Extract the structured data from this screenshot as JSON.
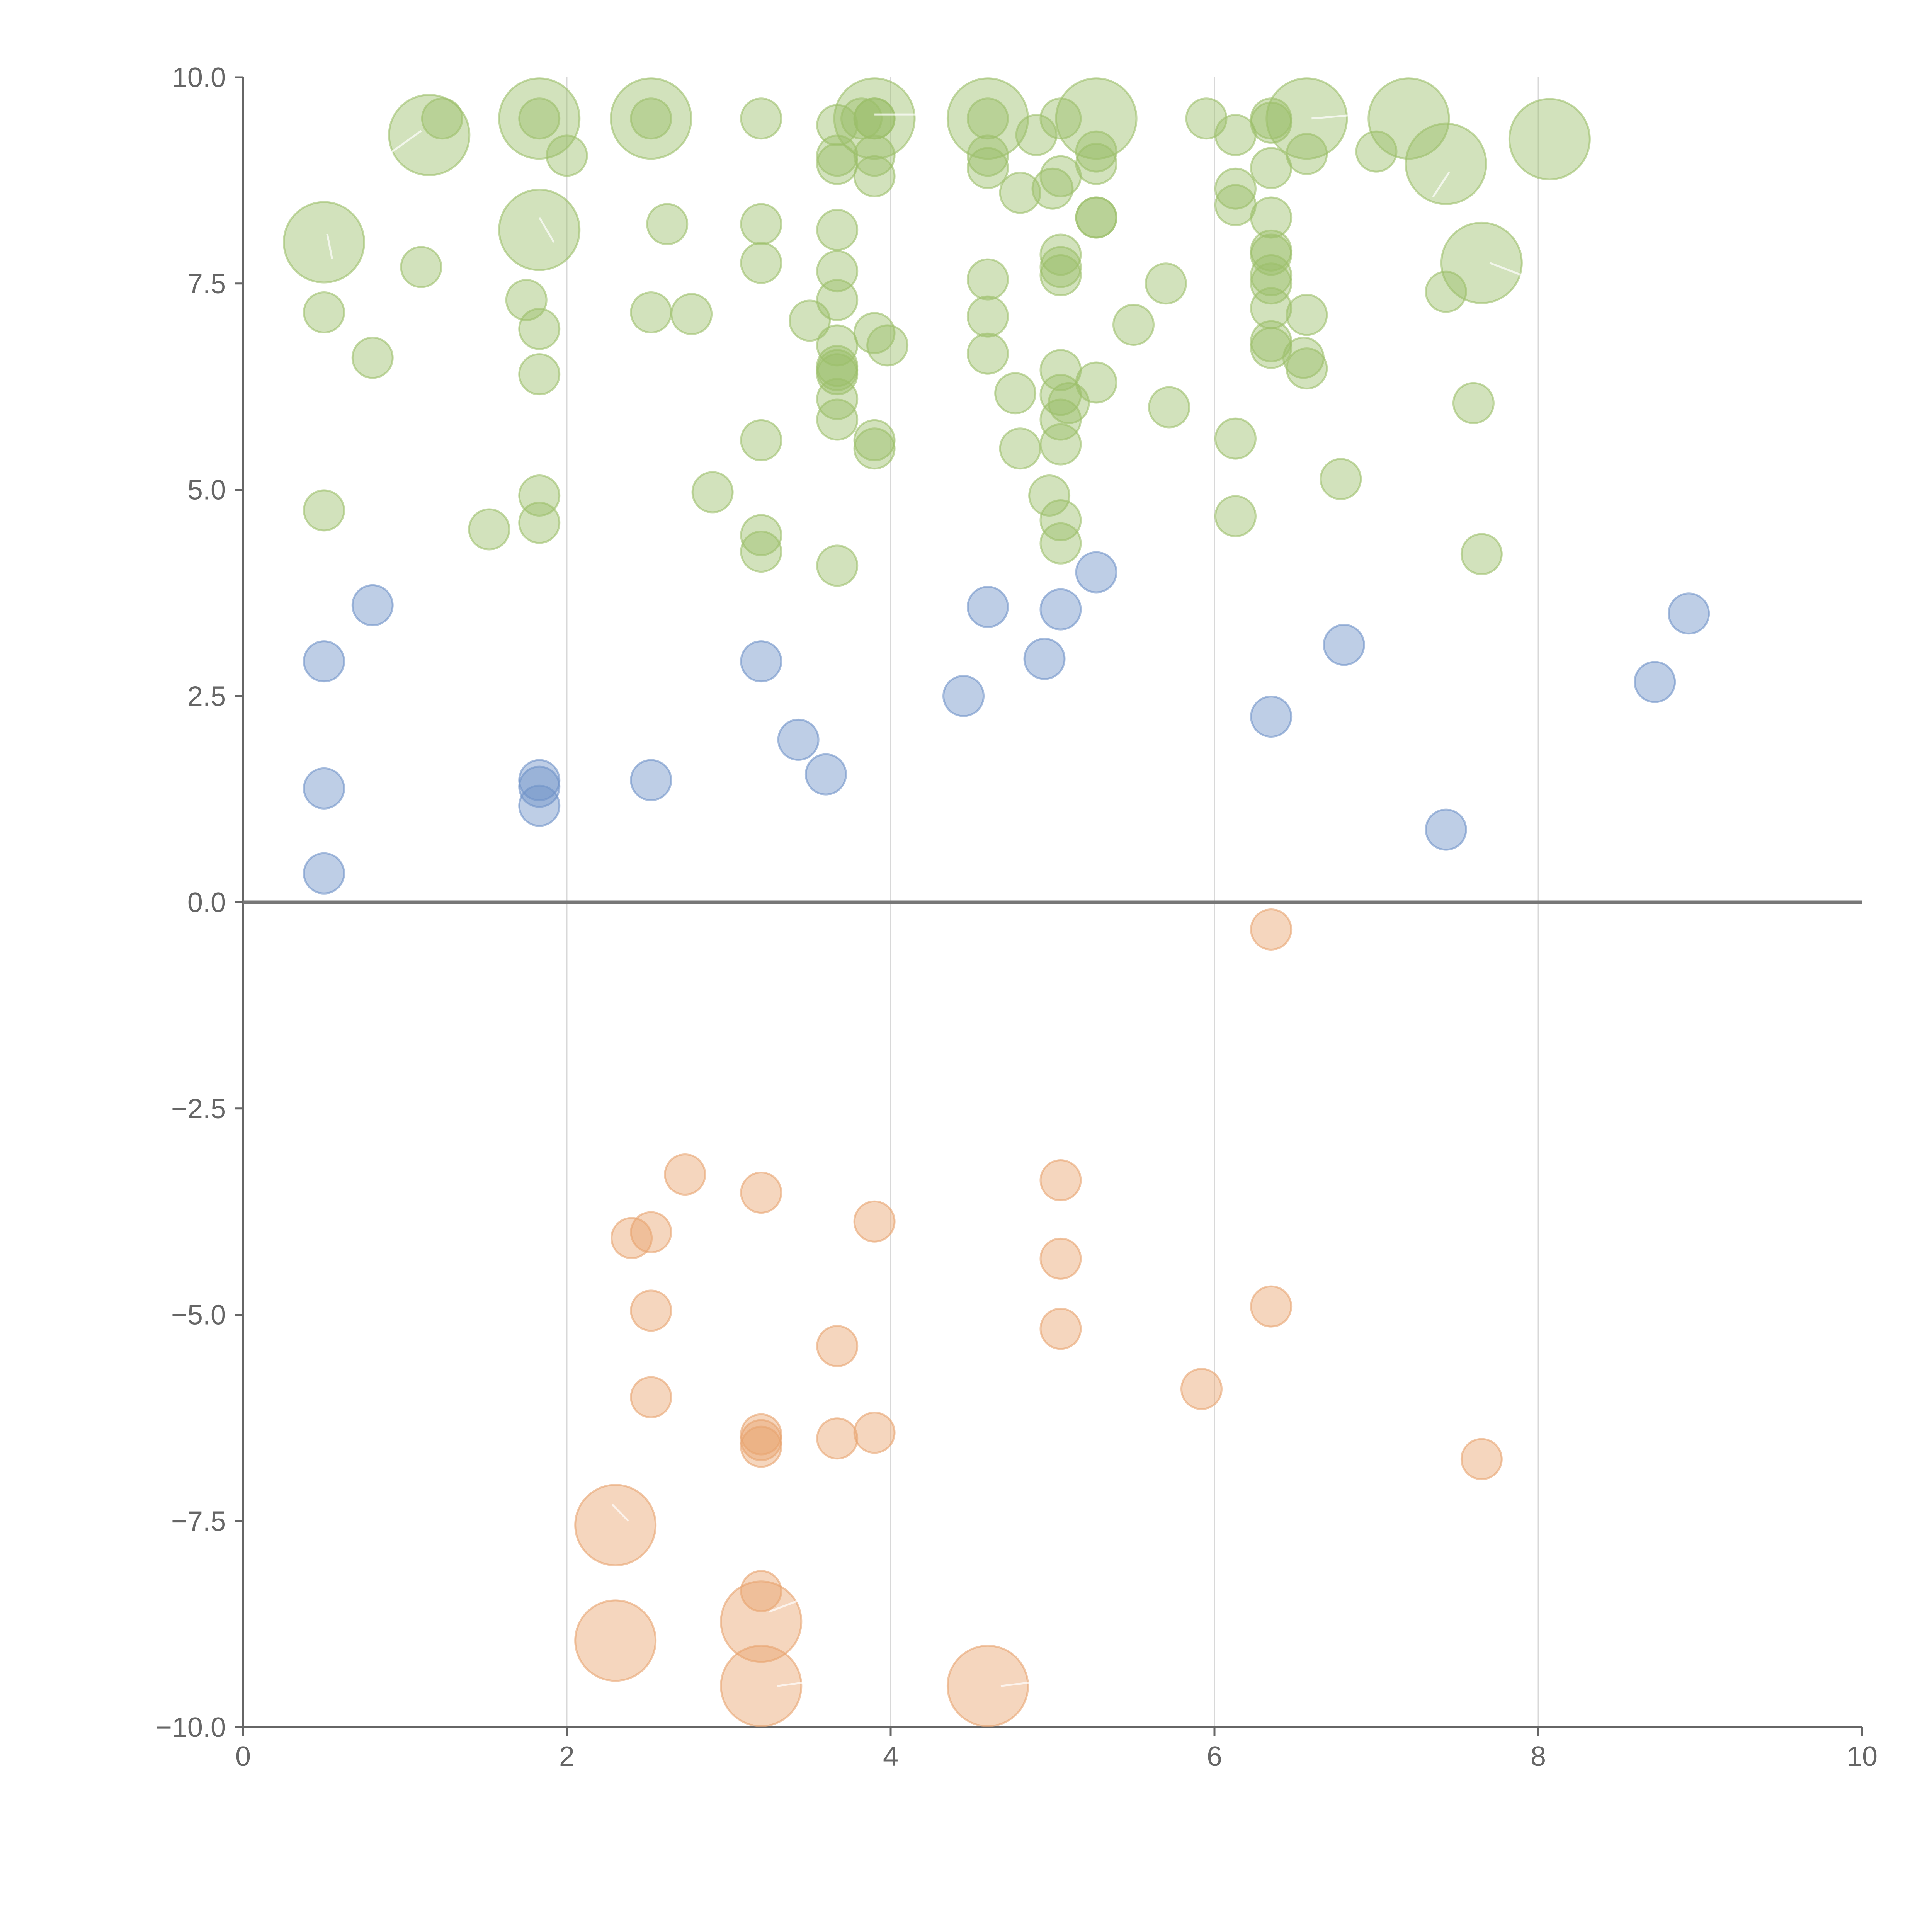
{
  "chart_data": {
    "type": "scatter",
    "subtype": "bubble",
    "title": "",
    "xlabel": "",
    "ylabel": "",
    "xlim": [
      0,
      10
    ],
    "ylim": [
      -10,
      10
    ],
    "x_ticks": [
      0,
      2,
      4,
      6,
      8,
      10
    ],
    "y_ticks": [
      10,
      7.5,
      5,
      2.5,
      0,
      -2.5,
      -5,
      -7.5,
      -10
    ],
    "x_tick_labels": [
      "0",
      "2",
      "4",
      "6",
      "8",
      "10"
    ],
    "y_tick_labels": [
      "10.0",
      "7.5",
      "5.0",
      "2.5",
      "0.0",
      "−2.5",
      "−5.0",
      "−7.5",
      "−10.0"
    ],
    "grid": "vertical only",
    "colors": {
      "green": "#9cbf6b",
      "blue": "#6f93c8",
      "orange": "#e8a36f"
    },
    "size_note": "s = relative bubble size (1 = smallest)",
    "series": [
      {
        "name": "green",
        "color_key": "green",
        "points": [
          {
            "x": 1.15,
            "y": 9.3,
            "s": 2.0
          },
          {
            "x": 1.23,
            "y": 9.5,
            "s": 1.0
          },
          {
            "x": 1.83,
            "y": 9.5,
            "s": 1.0
          },
          {
            "x": 1.83,
            "y": 9.5,
            "s": 2.0
          },
          {
            "x": 2.0,
            "y": 9.05,
            "s": 1.0
          },
          {
            "x": 2.52,
            "y": 9.5,
            "s": 1.0
          },
          {
            "x": 2.52,
            "y": 9.5,
            "s": 2.0
          },
          {
            "x": 3.2,
            "y": 9.5,
            "s": 1.0
          },
          {
            "x": 3.67,
            "y": 9.42,
            "s": 1.0
          },
          {
            "x": 3.82,
            "y": 9.5,
            "s": 1.0
          },
          {
            "x": 3.9,
            "y": 9.5,
            "s": 1.0
          },
          {
            "x": 3.9,
            "y": 9.5,
            "s": 1.0
          },
          {
            "x": 3.9,
            "y": 9.5,
            "s": 2.0
          },
          {
            "x": 4.6,
            "y": 9.5,
            "s": 1.0
          },
          {
            "x": 4.6,
            "y": 9.5,
            "s": 2.0
          },
          {
            "x": 4.9,
            "y": 9.3,
            "s": 1.0
          },
          {
            "x": 5.05,
            "y": 9.5,
            "s": 1.0
          },
          {
            "x": 5.27,
            "y": 9.5,
            "s": 2.0
          },
          {
            "x": 5.95,
            "y": 9.5,
            "s": 1.0
          },
          {
            "x": 6.13,
            "y": 9.3,
            "s": 1.0
          },
          {
            "x": 6.35,
            "y": 9.5,
            "s": 1.0
          },
          {
            "x": 6.35,
            "y": 9.45,
            "s": 1.0
          },
          {
            "x": 6.57,
            "y": 9.5,
            "s": 2.0
          },
          {
            "x": 7.2,
            "y": 9.5,
            "s": 2.0
          },
          {
            "x": 3.67,
            "y": 9.05,
            "s": 1.0
          },
          {
            "x": 3.67,
            "y": 8.95,
            "s": 1.0
          },
          {
            "x": 3.9,
            "y": 9.05,
            "s": 1.0
          },
          {
            "x": 3.9,
            "y": 8.8,
            "s": 1.0
          },
          {
            "x": 4.6,
            "y": 9.05,
            "s": 1.0
          },
          {
            "x": 4.6,
            "y": 8.9,
            "s": 1.0
          },
          {
            "x": 4.8,
            "y": 8.6,
            "s": 1.0
          },
          {
            "x": 5.0,
            "y": 8.65,
            "s": 1.0
          },
          {
            "x": 5.05,
            "y": 8.8,
            "s": 1.0
          },
          {
            "x": 5.27,
            "y": 9.1,
            "s": 1.0
          },
          {
            "x": 5.27,
            "y": 8.95,
            "s": 1.0
          },
          {
            "x": 5.27,
            "y": 8.3,
            "s": 1.0
          },
          {
            "x": 5.27,
            "y": 8.3,
            "s": 1.0
          },
          {
            "x": 6.13,
            "y": 8.65,
            "s": 1.0
          },
          {
            "x": 6.13,
            "y": 8.45,
            "s": 1.0
          },
          {
            "x": 6.35,
            "y": 8.9,
            "s": 1.0
          },
          {
            "x": 6.57,
            "y": 9.07,
            "s": 1.0
          },
          {
            "x": 7.0,
            "y": 9.1,
            "s": 1.0
          },
          {
            "x": 7.43,
            "y": 8.95,
            "s": 2.0
          },
          {
            "x": 8.07,
            "y": 9.25,
            "s": 2.0
          },
          {
            "x": 0.5,
            "y": 8.0,
            "s": 2.0
          },
          {
            "x": 1.1,
            "y": 7.7,
            "s": 1.0
          },
          {
            "x": 1.83,
            "y": 8.15,
            "s": 2.0
          },
          {
            "x": 2.62,
            "y": 8.22,
            "s": 1.0
          },
          {
            "x": 3.2,
            "y": 8.22,
            "s": 1.0
          },
          {
            "x": 3.2,
            "y": 7.75,
            "s": 1.0
          },
          {
            "x": 3.67,
            "y": 8.15,
            "s": 1.0
          },
          {
            "x": 3.67,
            "y": 7.65,
            "s": 1.0
          },
          {
            "x": 4.6,
            "y": 7.55,
            "s": 1.0
          },
          {
            "x": 5.05,
            "y": 7.85,
            "s": 1.0
          },
          {
            "x": 5.05,
            "y": 7.7,
            "s": 1.0
          },
          {
            "x": 5.05,
            "y": 7.6,
            "s": 1.0
          },
          {
            "x": 5.7,
            "y": 7.5,
            "s": 1.0
          },
          {
            "x": 6.35,
            "y": 8.3,
            "s": 1.0
          },
          {
            "x": 6.35,
            "y": 7.9,
            "s": 1.0
          },
          {
            "x": 6.35,
            "y": 7.85,
            "s": 1.0
          },
          {
            "x": 6.35,
            "y": 7.6,
            "s": 1.0
          },
          {
            "x": 6.35,
            "y": 7.5,
            "s": 1.0
          },
          {
            "x": 7.65,
            "y": 7.75,
            "s": 2.0
          },
          {
            "x": 7.43,
            "y": 7.4,
            "s": 1.0
          },
          {
            "x": 0.5,
            "y": 7.15,
            "s": 1.0
          },
          {
            "x": 0.8,
            "y": 6.6,
            "s": 1.0
          },
          {
            "x": 1.75,
            "y": 7.3,
            "s": 1.0
          },
          {
            "x": 1.83,
            "y": 6.95,
            "s": 1.0
          },
          {
            "x": 1.83,
            "y": 6.4,
            "s": 1.0
          },
          {
            "x": 2.52,
            "y": 7.15,
            "s": 1.0
          },
          {
            "x": 2.77,
            "y": 7.13,
            "s": 1.0
          },
          {
            "x": 3.5,
            "y": 7.05,
            "s": 1.0
          },
          {
            "x": 3.67,
            "y": 7.3,
            "s": 1.0
          },
          {
            "x": 3.67,
            "y": 6.75,
            "s": 1.0
          },
          {
            "x": 3.67,
            "y": 6.5,
            "s": 1.0
          },
          {
            "x": 3.67,
            "y": 6.45,
            "s": 1.0
          },
          {
            "x": 3.67,
            "y": 6.4,
            "s": 1.0
          },
          {
            "x": 3.67,
            "y": 6.1,
            "s": 1.0
          },
          {
            "x": 3.67,
            "y": 5.85,
            "s": 1.0
          },
          {
            "x": 3.9,
            "y": 6.9,
            "s": 1.0
          },
          {
            "x": 3.98,
            "y": 6.75,
            "s": 1.0
          },
          {
            "x": 3.9,
            "y": 5.6,
            "s": 1.0
          },
          {
            "x": 3.9,
            "y": 5.5,
            "s": 1.0
          },
          {
            "x": 4.6,
            "y": 7.1,
            "s": 1.0
          },
          {
            "x": 4.6,
            "y": 6.65,
            "s": 1.0
          },
          {
            "x": 4.77,
            "y": 6.17,
            "s": 1.0
          },
          {
            "x": 5.05,
            "y": 6.45,
            "s": 1.0
          },
          {
            "x": 5.05,
            "y": 6.15,
            "s": 1.0
          },
          {
            "x": 5.1,
            "y": 6.05,
            "s": 1.0
          },
          {
            "x": 5.05,
            "y": 5.85,
            "s": 1.0
          },
          {
            "x": 5.05,
            "y": 5.55,
            "s": 1.0
          },
          {
            "x": 4.8,
            "y": 5.5,
            "s": 1.0
          },
          {
            "x": 5.27,
            "y": 6.3,
            "s": 1.0
          },
          {
            "x": 5.5,
            "y": 7.0,
            "s": 1.0
          },
          {
            "x": 5.72,
            "y": 6.0,
            "s": 1.0
          },
          {
            "x": 6.13,
            "y": 5.62,
            "s": 1.0
          },
          {
            "x": 6.35,
            "y": 7.2,
            "s": 1.0
          },
          {
            "x": 6.35,
            "y": 6.8,
            "s": 1.0
          },
          {
            "x": 6.35,
            "y": 6.72,
            "s": 1.0
          },
          {
            "x": 6.57,
            "y": 7.12,
            "s": 1.0
          },
          {
            "x": 6.55,
            "y": 6.6,
            "s": 1.0
          },
          {
            "x": 6.57,
            "y": 6.47,
            "s": 1.0
          },
          {
            "x": 7.6,
            "y": 6.05,
            "s": 1.0
          },
          {
            "x": 3.2,
            "y": 5.6,
            "s": 1.0
          },
          {
            "x": 0.5,
            "y": 4.75,
            "s": 1.0
          },
          {
            "x": 1.52,
            "y": 4.52,
            "s": 1.0
          },
          {
            "x": 1.83,
            "y": 4.93,
            "s": 1.0
          },
          {
            "x": 1.83,
            "y": 4.6,
            "s": 1.0
          },
          {
            "x": 2.9,
            "y": 4.97,
            "s": 1.0
          },
          {
            "x": 3.2,
            "y": 4.45,
            "s": 1.0
          },
          {
            "x": 3.2,
            "y": 4.25,
            "s": 1.0
          },
          {
            "x": 3.67,
            "y": 4.08,
            "s": 1.0
          },
          {
            "x": 4.98,
            "y": 4.93,
            "s": 1.0
          },
          {
            "x": 5.05,
            "y": 4.63,
            "s": 1.0
          },
          {
            "x": 5.05,
            "y": 4.35,
            "s": 1.0
          },
          {
            "x": 6.13,
            "y": 4.68,
            "s": 1.0
          },
          {
            "x": 6.78,
            "y": 5.13,
            "s": 1.0
          },
          {
            "x": 7.65,
            "y": 4.22,
            "s": 1.0
          }
        ]
      },
      {
        "name": "blue",
        "color_key": "blue",
        "points": [
          {
            "x": 0.8,
            "y": 3.6,
            "s": 1.0
          },
          {
            "x": 0.5,
            "y": 2.92,
            "s": 1.0
          },
          {
            "x": 0.5,
            "y": 1.38,
            "s": 1.0
          },
          {
            "x": 0.5,
            "y": 0.35,
            "s": 1.0
          },
          {
            "x": 1.83,
            "y": 1.48,
            "s": 1.0
          },
          {
            "x": 1.83,
            "y": 1.4,
            "s": 1.0
          },
          {
            "x": 1.83,
            "y": 1.17,
            "s": 1.0
          },
          {
            "x": 2.52,
            "y": 1.48,
            "s": 1.0
          },
          {
            "x": 3.2,
            "y": 2.92,
            "s": 1.0
          },
          {
            "x": 3.43,
            "y": 1.97,
            "s": 1.0
          },
          {
            "x": 3.6,
            "y": 1.55,
            "s": 1.0
          },
          {
            "x": 4.45,
            "y": 2.5,
            "s": 1.0
          },
          {
            "x": 4.6,
            "y": 3.58,
            "s": 1.0
          },
          {
            "x": 4.95,
            "y": 2.95,
            "s": 1.0
          },
          {
            "x": 5.05,
            "y": 3.55,
            "s": 1.0
          },
          {
            "x": 5.27,
            "y": 4.0,
            "s": 1.0
          },
          {
            "x": 6.35,
            "y": 2.25,
            "s": 1.0
          },
          {
            "x": 6.8,
            "y": 3.12,
            "s": 1.0
          },
          {
            "x": 7.43,
            "y": 0.88,
            "s": 1.0
          },
          {
            "x": 8.72,
            "y": 2.67,
            "s": 1.0
          },
          {
            "x": 8.93,
            "y": 3.5,
            "s": 1.0
          }
        ]
      },
      {
        "name": "orange",
        "color_key": "orange",
        "points": [
          {
            "x": 6.35,
            "y": -0.33,
            "s": 1.0
          },
          {
            "x": 2.73,
            "y": -3.3,
            "s": 1.0
          },
          {
            "x": 3.2,
            "y": -3.52,
            "s": 1.0
          },
          {
            "x": 2.4,
            "y": -4.07,
            "s": 1.0
          },
          {
            "x": 2.52,
            "y": -4.0,
            "s": 1.0
          },
          {
            "x": 3.9,
            "y": -3.87,
            "s": 1.0
          },
          {
            "x": 5.05,
            "y": -3.37,
            "s": 1.0
          },
          {
            "x": 5.05,
            "y": -4.32,
            "s": 1.0
          },
          {
            "x": 2.52,
            "y": -4.95,
            "s": 1.0
          },
          {
            "x": 3.67,
            "y": -5.38,
            "s": 1.0
          },
          {
            "x": 5.05,
            "y": -5.17,
            "s": 1.0
          },
          {
            "x": 6.35,
            "y": -4.9,
            "s": 1.0
          },
          {
            "x": 5.92,
            "y": -5.9,
            "s": 1.0
          },
          {
            "x": 2.52,
            "y": -6.0,
            "s": 1.0
          },
          {
            "x": 3.2,
            "y": -6.45,
            "s": 1.0
          },
          {
            "x": 3.2,
            "y": -6.52,
            "s": 1.0
          },
          {
            "x": 3.2,
            "y": -6.6,
            "s": 1.0
          },
          {
            "x": 3.67,
            "y": -6.5,
            "s": 1.0
          },
          {
            "x": 3.9,
            "y": -6.43,
            "s": 1.0
          },
          {
            "x": 7.65,
            "y": -6.75,
            "s": 1.0
          },
          {
            "x": 2.3,
            "y": -7.55,
            "s": 2.0
          },
          {
            "x": 3.2,
            "y": -8.35,
            "s": 1.0
          },
          {
            "x": 3.2,
            "y": -8.72,
            "s": 2.0
          },
          {
            "x": 2.3,
            "y": -8.95,
            "s": 2.0
          },
          {
            "x": 3.2,
            "y": -9.5,
            "s": 2.0
          },
          {
            "x": 4.6,
            "y": -9.5,
            "s": 2.0
          }
        ]
      }
    ]
  }
}
